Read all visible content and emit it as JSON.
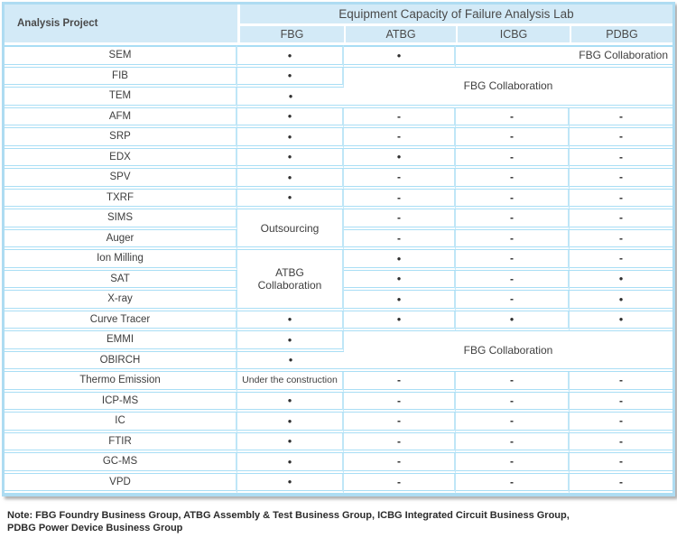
{
  "header": {
    "corner": "Analysis Project",
    "title": "Equipment Capacity of Failure Analysis Lab",
    "columns": [
      "FBG",
      "ATBG",
      "ICBG",
      "PDBG"
    ]
  },
  "glyphs": {
    "available_dot": "●",
    "not_available_dash": "-"
  },
  "rows": [
    {
      "project": "SEM",
      "cells": [
        {
          "t": "dot"
        },
        {
          "t": "dot"
        },
        {
          "t": "text",
          "text": "FBG Collaboration",
          "colspan": 2,
          "align": "right",
          "name": "fbg-collaboration-cell"
        }
      ]
    },
    {
      "project": "FIB",
      "cells": [
        {
          "t": "dot"
        },
        {
          "t": "text",
          "text": "FBG Collaboration",
          "colspan": 3,
          "rowspan": 2,
          "name": "fbg-collaboration-cell"
        }
      ]
    },
    {
      "project": "TEM",
      "cells": [
        {
          "t": "dot"
        }
      ]
    },
    {
      "project": "AFM",
      "cells": [
        {
          "t": "dot"
        },
        {
          "t": "dash"
        },
        {
          "t": "dash"
        },
        {
          "t": "dash"
        }
      ]
    },
    {
      "project": "SRP",
      "cells": [
        {
          "t": "dot"
        },
        {
          "t": "dash"
        },
        {
          "t": "dash"
        },
        {
          "t": "dash"
        }
      ]
    },
    {
      "project": "EDX",
      "cells": [
        {
          "t": "dot"
        },
        {
          "t": "dot"
        },
        {
          "t": "dash"
        },
        {
          "t": "dash"
        }
      ]
    },
    {
      "project": "SPV",
      "cells": [
        {
          "t": "dot"
        },
        {
          "t": "dash"
        },
        {
          "t": "dash"
        },
        {
          "t": "dash"
        }
      ]
    },
    {
      "project": "TXRF",
      "cells": [
        {
          "t": "dot"
        },
        {
          "t": "dash"
        },
        {
          "t": "dash"
        },
        {
          "t": "dash"
        }
      ]
    },
    {
      "project": "SIMS",
      "cells": [
        {
          "t": "text",
          "text": "Outsourcing",
          "rowspan": 2,
          "name": "outsourcing-cell"
        },
        {
          "t": "dash"
        },
        {
          "t": "dash"
        },
        {
          "t": "dash"
        }
      ]
    },
    {
      "project": "Auger",
      "cells": [
        {
          "t": "dash"
        },
        {
          "t": "dash"
        },
        {
          "t": "dash"
        }
      ]
    },
    {
      "project": "Ion Milling",
      "cells": [
        {
          "t": "text",
          "text": "ATBG Collaboration",
          "rowspan": 3,
          "wrap": true,
          "name": "atbg-collaboration-cell"
        },
        {
          "t": "dot"
        },
        {
          "t": "dash"
        },
        {
          "t": "dash"
        }
      ]
    },
    {
      "project": "SAT",
      "cells": [
        {
          "t": "dot"
        },
        {
          "t": "dash"
        },
        {
          "t": "dot"
        }
      ]
    },
    {
      "project": "X-ray",
      "cells": [
        {
          "t": "dot"
        },
        {
          "t": "dash"
        },
        {
          "t": "dot"
        }
      ]
    },
    {
      "project": "Curve Tracer",
      "cells": [
        {
          "t": "dot"
        },
        {
          "t": "dot"
        },
        {
          "t": "dot"
        },
        {
          "t": "dot"
        }
      ]
    },
    {
      "project": "EMMI",
      "cells": [
        {
          "t": "dot"
        },
        {
          "t": "text",
          "text": "FBG Collaboration",
          "colspan": 3,
          "rowspan": 2,
          "name": "fbg-collaboration-cell"
        }
      ]
    },
    {
      "project": "OBIRCH",
      "cells": [
        {
          "t": "dot"
        }
      ]
    },
    {
      "project": "Thermo Emission",
      "cells": [
        {
          "t": "text",
          "text": "Under the construction",
          "small": true,
          "name": "under-construction-cell"
        },
        {
          "t": "dash"
        },
        {
          "t": "dash"
        },
        {
          "t": "dash"
        }
      ]
    },
    {
      "project": "ICP-MS",
      "cells": [
        {
          "t": "dot"
        },
        {
          "t": "dash"
        },
        {
          "t": "dash"
        },
        {
          "t": "dash"
        }
      ]
    },
    {
      "project": "IC",
      "cells": [
        {
          "t": "dot"
        },
        {
          "t": "dash"
        },
        {
          "t": "dash"
        },
        {
          "t": "dash"
        }
      ]
    },
    {
      "project": "FTIR",
      "cells": [
        {
          "t": "dot"
        },
        {
          "t": "dash"
        },
        {
          "t": "dash"
        },
        {
          "t": "dash"
        }
      ]
    },
    {
      "project": "GC-MS",
      "cells": [
        {
          "t": "dot"
        },
        {
          "t": "dash"
        },
        {
          "t": "dash"
        },
        {
          "t": "dash"
        }
      ]
    },
    {
      "project": "VPD",
      "cells": [
        {
          "t": "dot"
        },
        {
          "t": "dash"
        },
        {
          "t": "dash"
        },
        {
          "t": "dash"
        }
      ]
    }
  ],
  "note": {
    "line1": "Note: FBG Foundry Business Group, ATBG Assembly & Test Business Group, ICBG Integrated Circuit Business Group,",
    "line2": "PDBG Power Device Business Group"
  },
  "colors": {
    "header_bg": "#d3eaf7",
    "grid_blue": "#a9def5",
    "frame_blue": "#aedcf2",
    "shadow_gray": "#9a9a9a",
    "body_text": "#3d3d3d"
  }
}
